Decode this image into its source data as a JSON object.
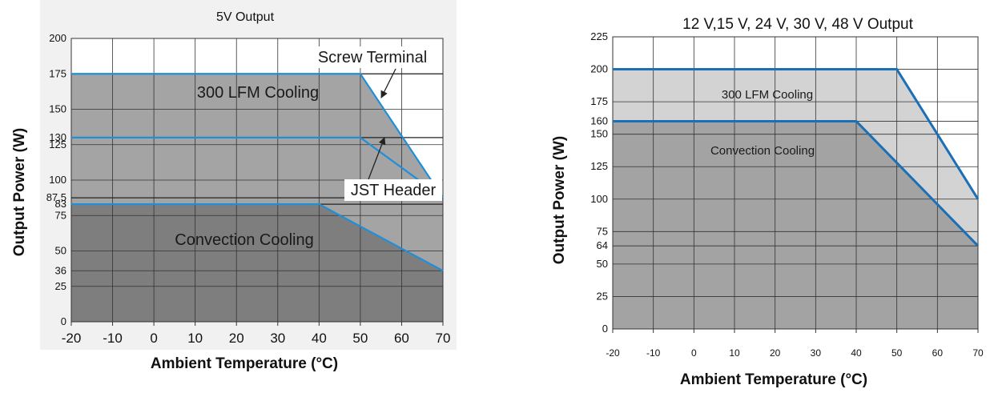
{
  "chart_data": [
    {
      "type": "area",
      "title": "5V Output",
      "xlabel": "Ambient Temperature (°C)",
      "ylabel": "Output Power (W)",
      "xlim": [
        -20,
        70
      ],
      "ylim": [
        0,
        200
      ],
      "xticks": [
        -20,
        -10,
        0,
        10,
        20,
        30,
        40,
        50,
        60,
        70
      ],
      "yticks": [
        0,
        25,
        36,
        50,
        75,
        83,
        87.5,
        100,
        125,
        130,
        150,
        175,
        200
      ],
      "grid": true,
      "series": [
        {
          "name": "300 LFM Cooling",
          "x": [
            -20,
            50,
            70
          ],
          "y": [
            175,
            175,
            87.5
          ]
        },
        {
          "name": "JST Header",
          "x": [
            -20,
            50,
            70
          ],
          "y": [
            130,
            130,
            87.5
          ]
        },
        {
          "name": "Convection Cooling",
          "x": [
            -20,
            40,
            70
          ],
          "y": [
            83,
            83,
            36
          ]
        }
      ],
      "annotations": [
        "Screw Terminal",
        "JST Header"
      ],
      "labels": {
        "title": "5V Output",
        "xlabel": "Ambient Temperature (°C)",
        "ylabel": "Output Power (W)",
        "lfm": "300 LFM Cooling",
        "convection": "Convection Cooling",
        "screw": "Screw Terminal",
        "jst": "JST Header"
      }
    },
    {
      "type": "area",
      "title": "12 V,15 V, 24 V, 30 V, 48 V Output",
      "xlabel": "Ambient Temperature (°C)",
      "ylabel": "Output Power (W)",
      "xlim": [
        -20,
        70
      ],
      "ylim": [
        0,
        225
      ],
      "xticks": [
        -20,
        -10,
        0,
        10,
        20,
        30,
        40,
        50,
        60,
        70
      ],
      "yticks": [
        0,
        25,
        50,
        64,
        75,
        100,
        125,
        150,
        160,
        175,
        200,
        225
      ],
      "grid": true,
      "series": [
        {
          "name": "300 LFM Cooling",
          "x": [
            -20,
            50,
            70
          ],
          "y": [
            200,
            200,
            100
          ]
        },
        {
          "name": "Convection Cooling",
          "x": [
            -20,
            40,
            70
          ],
          "y": [
            160,
            160,
            64
          ]
        }
      ],
      "labels": {
        "title": "12 V,15 V, 24 V, 30 V, 48 V Output",
        "xlabel": "Ambient Temperature (°C)",
        "ylabel": "Output Power (W)",
        "lfm": "300 LFM Cooling",
        "convection": "Convection Cooling"
      }
    }
  ]
}
